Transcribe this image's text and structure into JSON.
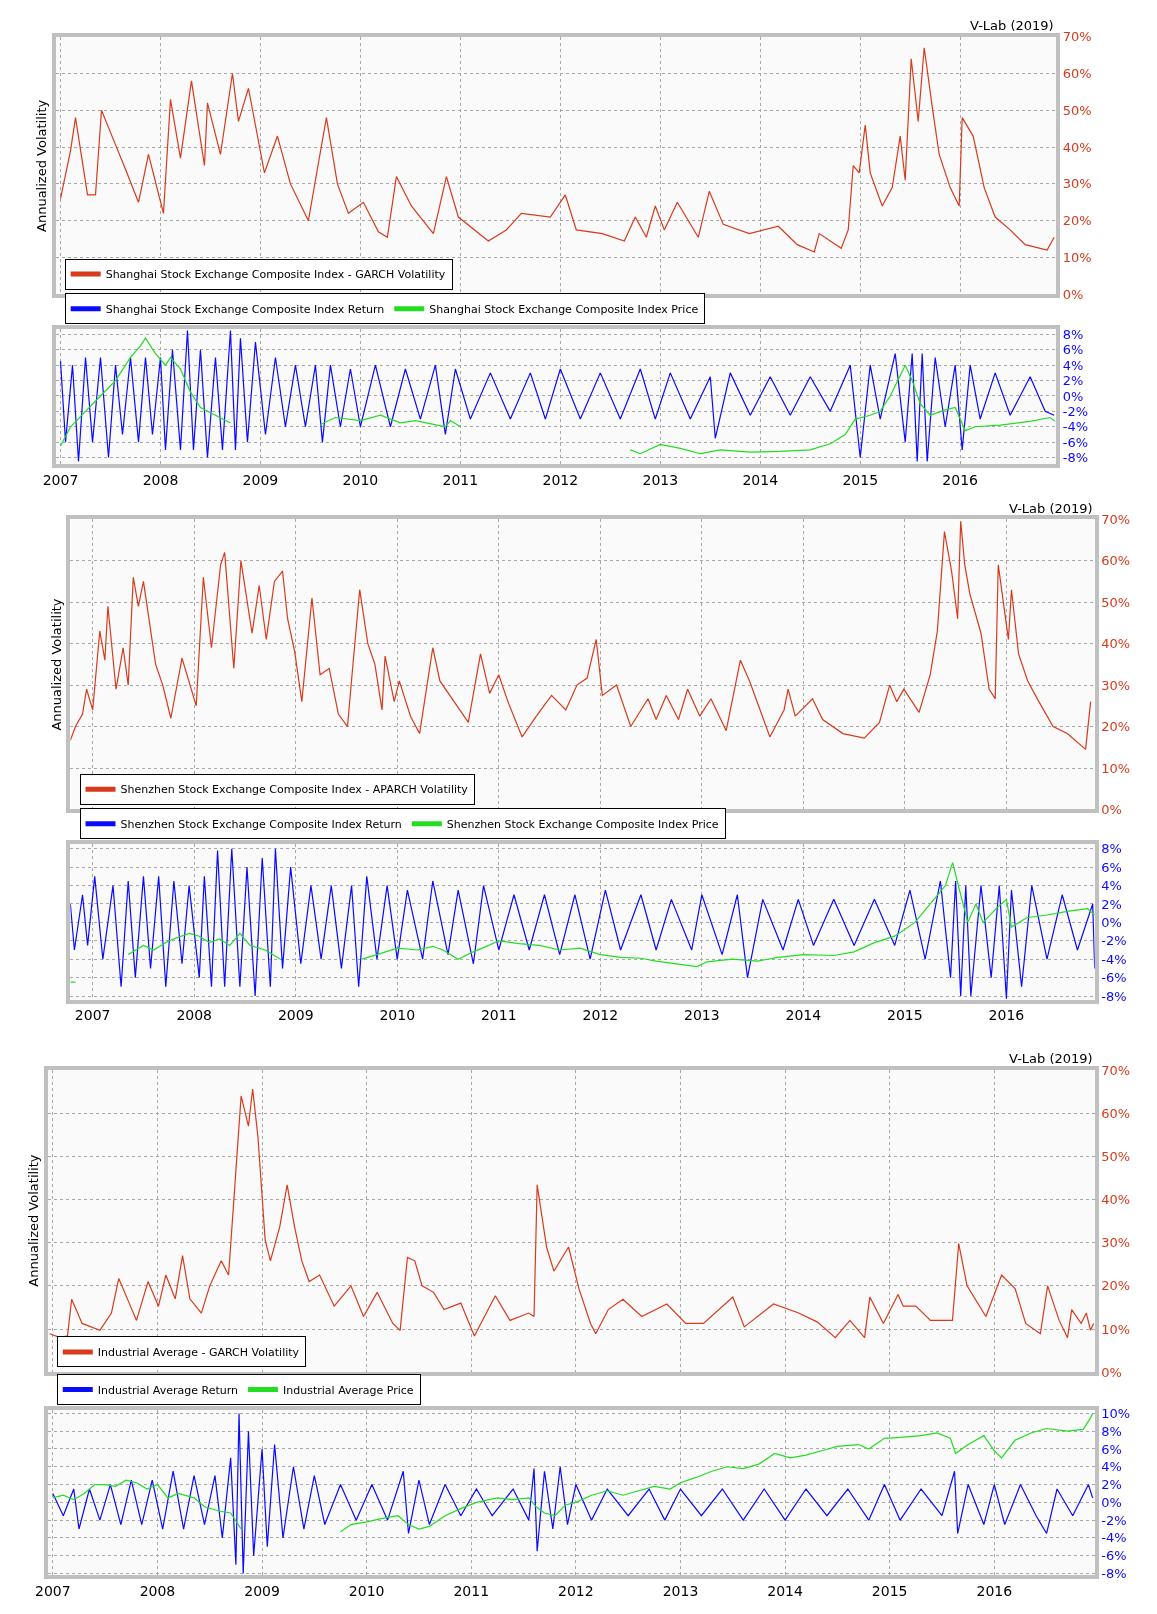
{
  "chart_data": [
    {
      "type": "line",
      "ylabel": "Annualized Volatility",
      "annotations": [
        "V-Lab (2019)"
      ],
      "xlim": [
        2006.95,
        2016.96
      ],
      "xticks": [
        2007,
        2008,
        2009,
        2010,
        2011,
        2012,
        2013,
        2014,
        2015,
        2016
      ],
      "ylim": [
        0,
        70
      ],
      "yticks": [
        {
          "value": 0,
          "label": "0%"
        },
        {
          "value": 10,
          "label": "10%"
        },
        {
          "value": 20,
          "label": "20%"
        },
        {
          "value": 30,
          "label": "30%"
        },
        {
          "value": 40,
          "label": "40%"
        },
        {
          "value": 50,
          "label": "50%"
        },
        {
          "value": 60,
          "label": "60%"
        },
        {
          "value": 70,
          "label": "70%"
        }
      ],
      "grid": true,
      "legend": "bottom left",
      "tick_labels": "y",
      "series": [
        {
          "name": "Shanghai Stock Exchange Composite Index - GARCH Volatility",
          "color": "#d83a1c",
          "x": [
            2007.0,
            2007.1,
            2007.15,
            2007.27,
            2007.35,
            2007.41,
            2007.5,
            2007.65,
            2007.78,
            2007.88,
            2008.03,
            2008.1,
            2008.2,
            2008.31,
            2008.44,
            2008.47,
            2008.6,
            2008.72,
            2008.78,
            2008.88,
            2009.04,
            2009.17,
            2009.3,
            2009.48,
            2009.55,
            2009.66,
            2009.77,
            2009.88,
            2010.03,
            2010.18,
            2010.27,
            2010.36,
            2010.51,
            2010.73,
            2010.86,
            2010.98,
            2011.28,
            2011.46,
            2011.61,
            2011.9,
            2012.05,
            2012.16,
            2012.42,
            2012.64,
            2012.75,
            2012.86,
            2012.95,
            2013.04,
            2013.17,
            2013.38,
            2013.49,
            2013.63,
            2013.89,
            2014.18,
            2014.37,
            2014.54,
            2014.59,
            2014.81,
            2014.88,
            2014.93,
            2014.99,
            2015.05,
            2015.1,
            2015.22,
            2015.32,
            2015.4,
            2015.45,
            2015.51,
            2015.58,
            2015.64,
            2015.72,
            2015.79,
            2015.9,
            2015.99,
            2016.02,
            2016.13,
            2016.24,
            2016.35,
            2016.5,
            2016.65,
            2016.87,
            2016.94
          ],
          "values": [
            26,
            39,
            48,
            27,
            27,
            50,
            44,
            34,
            25,
            38,
            22,
            53,
            37,
            58,
            35,
            52,
            38,
            60,
            47,
            56,
            33,
            43,
            30,
            20,
            31,
            48,
            30,
            22,
            25,
            17,
            15.5,
            32,
            24,
            16.5,
            32,
            21,
            14.5,
            17.5,
            22,
            21,
            27,
            17.5,
            16.5,
            14.5,
            21,
            15.5,
            24,
            17.5,
            25,
            15.5,
            28,
            19,
            16.5,
            18.5,
            13.5,
            11.5,
            16.5,
            12.5,
            17.5,
            35,
            33,
            46,
            33,
            24,
            29,
            43,
            31,
            64,
            47,
            67,
            51,
            38,
            29,
            24,
            48,
            43,
            29,
            21,
            17.5,
            13.5,
            12,
            15.5
          ]
        }
      ]
    },
    {
      "type": "line",
      "xlim": [
        2006.95,
        2016.96
      ],
      "xticks": [
        2007,
        2008,
        2009,
        2010,
        2011,
        2012,
        2013,
        2014,
        2015,
        2016
      ],
      "ylim": [
        -8.8,
        8.7
      ],
      "yticks": [
        {
          "value": -8,
          "label": "-8%"
        },
        {
          "value": -6,
          "label": "-6%"
        },
        {
          "value": -4,
          "label": "-4%"
        },
        {
          "value": -2,
          "label": "-2%"
        },
        {
          "value": 0,
          "label": "0%"
        },
        {
          "value": 2,
          "label": "2%"
        },
        {
          "value": 4,
          "label": "4%"
        },
        {
          "value": 6,
          "label": "6%"
        },
        {
          "value": 8,
          "label": "8%"
        }
      ],
      "grid": true,
      "legend": "top left",
      "series": [
        {
          "name": "Shanghai Stock Exchange Composite Index Return",
          "color": "#0a0aff",
          "x": [
            2007.0,
            2007.05,
            2007.12,
            2007.18,
            2007.25,
            2007.32,
            2007.4,
            2007.48,
            2007.55,
            2007.62,
            2007.7,
            2007.78,
            2007.85,
            2007.92,
            2008.0,
            2008.05,
            2008.12,
            2008.2,
            2008.27,
            2008.33,
            2008.4,
            2008.47,
            2008.55,
            2008.62,
            2008.7,
            2008.75,
            2008.8,
            2008.87,
            2008.95,
            2009.05,
            2009.15,
            2009.25,
            2009.35,
            2009.45,
            2009.55,
            2009.62,
            2009.7,
            2009.8,
            2009.9,
            2010.0,
            2010.15,
            2010.3,
            2010.45,
            2010.6,
            2010.75,
            2010.85,
            2010.95,
            2011.1,
            2011.3,
            2011.5,
            2011.7,
            2011.85,
            2012.0,
            2012.2,
            2012.4,
            2012.6,
            2012.8,
            2012.95,
            2013.1,
            2013.3,
            2013.5,
            2013.55,
            2013.7,
            2013.9,
            2014.1,
            2014.3,
            2014.5,
            2014.7,
            2014.9,
            2015.0,
            2015.1,
            2015.2,
            2015.35,
            2015.45,
            2015.52,
            2015.57,
            2015.62,
            2015.67,
            2015.75,
            2015.85,
            2015.95,
            2016.02,
            2016.1,
            2016.2,
            2016.35,
            2016.5,
            2016.7,
            2016.85,
            2016.94
          ],
          "values": [
            4.5,
            -6,
            4,
            -8.5,
            5,
            -6,
            5,
            -8,
            4,
            -5,
            5,
            -6,
            5,
            -5,
            5,
            -7,
            6,
            -7,
            8.5,
            -7,
            6,
            -8,
            5,
            -7,
            8.5,
            -7,
            7.5,
            -6,
            7,
            -5,
            5,
            -4,
            4,
            -4,
            4,
            -6,
            4,
            -4,
            3.5,
            -4,
            4,
            -4,
            3.5,
            -3,
            4,
            -5,
            3.5,
            -3,
            3,
            -3,
            3,
            -3,
            3.5,
            -3,
            3,
            -3,
            3.5,
            -3,
            3,
            -3,
            2.5,
            -5.5,
            3,
            -2.5,
            2.5,
            -2.5,
            2.5,
            -2,
            4,
            -8,
            4,
            -3,
            5.5,
            -6,
            5.5,
            -8.5,
            5.5,
            -8.5,
            5,
            -4,
            4,
            -7,
            4,
            -3,
            3,
            -2.5,
            2.5,
            -2,
            -2.5
          ]
        },
        {
          "name": "Shanghai Stock Exchange Composite Index Price",
          "color": "#22dd22",
          "x": [
            2007.0,
            2007.1,
            2007.25,
            2007.4,
            2007.55,
            2007.7,
            2007.8,
            2007.85,
            2007.95,
            2008.05,
            2008.1,
            2008.2,
            2008.3,
            2008.4,
            2008.55,
            2008.7,
            2008.8,
            2009.6,
            2009.75,
            2010.0,
            2010.2,
            2010.4,
            2010.55,
            2010.85,
            2010.9,
            2011.0,
            2011.1,
            2012.7,
            2012.8,
            2013.0,
            2013.2,
            2013.4,
            2013.6,
            2013.9,
            2014.2,
            2014.5,
            2014.7,
            2014.85,
            2014.95,
            2015.1,
            2015.2,
            2015.3,
            2015.45,
            2015.52,
            2015.6,
            2015.7,
            2015.85,
            2015.95,
            2016.05,
            2016.15,
            2016.4,
            2016.7,
            2016.9,
            2016.95
          ],
          "values": [
            -6.5,
            -4,
            -2,
            0,
            2,
            5,
            6.5,
            7.5,
            5.5,
            4,
            5,
            3.5,
            0.5,
            -1.5,
            -2.5,
            -3.5,
            null,
            -3.7,
            -2.8,
            -3.2,
            -2.5,
            -3.5,
            -3.2,
            -4,
            -3.2,
            -4,
            null,
            -7,
            -7.5,
            -6.3,
            -6.8,
            -7.5,
            -7,
            -7.3,
            -7.2,
            -7,
            -6.2,
            -5,
            -3,
            -2.5,
            -2,
            0,
            4,
            2,
            -1,
            -2.5,
            -1.8,
            -1.5,
            -4.5,
            -4,
            -3.8,
            -3.3,
            -2.8,
            -3.3
          ]
        }
      ]
    },
    {
      "type": "line",
      "ylabel": "Annualized Volatility",
      "annotations": [
        "V-Lab (2019)"
      ],
      "xlim": [
        2006.78,
        2016.87
      ],
      "xticks": [
        2007,
        2008,
        2009,
        2010,
        2011,
        2012,
        2013,
        2014,
        2015,
        2016
      ],
      "ylim": [
        0,
        70
      ],
      "yticks": [
        {
          "value": 0,
          "label": "0%"
        },
        {
          "value": 10,
          "label": "10%"
        },
        {
          "value": 20,
          "label": "20%"
        },
        {
          "value": 30,
          "label": "30%"
        },
        {
          "value": 40,
          "label": "40%"
        },
        {
          "value": 50,
          "label": "50%"
        },
        {
          "value": 60,
          "label": "60%"
        },
        {
          "value": 70,
          "label": "70%"
        }
      ],
      "grid": true,
      "legend": "bottom left",
      "tick_labels": "y",
      "series": [
        {
          "name": "Shenzhen Stock Exchange Composite Index - APARCH Volatility",
          "color": "#d83a1c",
          "x": [
            2006.78,
            2006.83,
            2006.9,
            2006.94,
            2007.0,
            2007.07,
            2007.12,
            2007.15,
            2007.23,
            2007.3,
            2007.35,
            2007.4,
            2007.45,
            2007.5,
            2007.62,
            2007.69,
            2007.77,
            2007.88,
            2008.02,
            2008.09,
            2008.17,
            2008.26,
            2008.3,
            2008.39,
            2008.46,
            2008.57,
            2008.64,
            2008.71,
            2008.79,
            2008.87,
            2008.92,
            2008.99,
            2009.06,
            2009.16,
            2009.24,
            2009.33,
            2009.42,
            2009.51,
            2009.56,
            2009.63,
            2009.71,
            2009.78,
            2009.85,
            2009.88,
            2009.97,
            2010.02,
            2010.13,
            2010.22,
            2010.35,
            2010.42,
            2010.56,
            2010.7,
            2010.82,
            2010.91,
            2011.0,
            2011.09,
            2011.23,
            2011.37,
            2011.52,
            2011.66,
            2011.77,
            2011.87,
            2011.96,
            2012.02,
            2012.16,
            2012.3,
            2012.47,
            2012.55,
            2012.65,
            2012.77,
            2012.86,
            2012.98,
            2013.09,
            2013.24,
            2013.38,
            2013.47,
            2013.67,
            2013.81,
            2013.85,
            2013.92,
            2014.09,
            2014.19,
            2014.39,
            2014.6,
            2014.75,
            2014.85,
            2014.92,
            2014.99,
            2015.14,
            2015.25,
            2015.32,
            2015.39,
            2015.46,
            2015.52,
            2015.55,
            2015.59,
            2015.64,
            2015.75,
            2015.83,
            2015.89,
            2015.92,
            2016.02,
            2016.05,
            2016.12,
            2016.21,
            2016.32,
            2016.46,
            2016.6,
            2016.78,
            2016.83
          ],
          "values": [
            16.7,
            20,
            23,
            29,
            24,
            43,
            36,
            49,
            29,
            39,
            30,
            56,
            49,
            55,
            35,
            30,
            22,
            36.5,
            25,
            56,
            39,
            59,
            62,
            34,
            60,
            42.5,
            54,
            41,
            55,
            57.5,
            46,
            38,
            26,
            51,
            32.5,
            34,
            23,
            20,
            34,
            53,
            40,
            35,
            24,
            37,
            26,
            31,
            22.5,
            18.3,
            39,
            31,
            26,
            21,
            37.5,
            28,
            32.5,
            26,
            17.5,
            22.5,
            27.5,
            24,
            30,
            31.7,
            41,
            27.5,
            30,
            20,
            26.7,
            21.7,
            27.5,
            21.7,
            29,
            22.5,
            26.7,
            19,
            36,
            31,
            17.5,
            24,
            29,
            22.5,
            26.7,
            21.7,
            18.3,
            17.2,
            21,
            30,
            26,
            29,
            23.4,
            32.5,
            43,
            67,
            57.5,
            46,
            69.5,
            59,
            52,
            42.5,
            29,
            26.7,
            59,
            41,
            53,
            37.5,
            31,
            26,
            20,
            18.3,
            14.5,
            26
          ]
        }
      ]
    },
    {
      "type": "line",
      "xlim": [
        2006.78,
        2016.87
      ],
      "xticks": [
        2007,
        2008,
        2009,
        2010,
        2011,
        2012,
        2013,
        2014,
        2015,
        2016
      ],
      "ylim": [
        -8.4,
        8.5
      ],
      "yticks": [
        {
          "value": -8,
          "label": "-8%"
        },
        {
          "value": -6,
          "label": "-6%"
        },
        {
          "value": -4,
          "label": "-4%"
        },
        {
          "value": -2,
          "label": "-2%"
        },
        {
          "value": 0,
          "label": "0%"
        },
        {
          "value": 2,
          "label": "2%"
        },
        {
          "value": 4,
          "label": "4%"
        },
        {
          "value": 6,
          "label": "6%"
        },
        {
          "value": 8,
          "label": "8%"
        }
      ],
      "grid": true,
      "legend": "top left",
      "series": [
        {
          "name": "Shenzhen Stock Exchange Composite Index Return",
          "color": "#0a0aff",
          "x": [
            2006.78,
            2006.82,
            2006.9,
            2006.95,
            2007.02,
            2007.1,
            2007.2,
            2007.28,
            2007.35,
            2007.42,
            2007.5,
            2007.57,
            2007.65,
            2007.72,
            2007.8,
            2007.88,
            2007.95,
            2008.05,
            2008.1,
            2008.17,
            2008.23,
            2008.3,
            2008.37,
            2008.45,
            2008.52,
            2008.6,
            2008.67,
            2008.75,
            2008.8,
            2008.87,
            2008.95,
            2009.05,
            2009.15,
            2009.25,
            2009.35,
            2009.45,
            2009.55,
            2009.62,
            2009.7,
            2009.8,
            2009.9,
            2010.0,
            2010.1,
            2010.25,
            2010.35,
            2010.5,
            2010.6,
            2010.75,
            2010.85,
            2011.0,
            2011.15,
            2011.3,
            2011.45,
            2011.6,
            2011.75,
            2011.9,
            2012.05,
            2012.2,
            2012.4,
            2012.55,
            2012.7,
            2012.9,
            2013.0,
            2013.2,
            2013.35,
            2013.45,
            2013.6,
            2013.8,
            2013.95,
            2014.1,
            2014.3,
            2014.5,
            2014.7,
            2014.9,
            2015.05,
            2015.2,
            2015.35,
            2015.45,
            2015.5,
            2015.55,
            2015.6,
            2015.65,
            2015.75,
            2015.85,
            2015.93,
            2016.0,
            2016.05,
            2016.15,
            2016.25,
            2016.4,
            2016.55,
            2016.7,
            2016.85,
            2016.87
          ],
          "values": [
            2,
            -3,
            3,
            -2.5,
            5,
            -4,
            4,
            -7,
            4.5,
            -6,
            5,
            -5,
            5,
            -7,
            4.5,
            -4.5,
            4,
            -6,
            5,
            -7,
            7.8,
            -7,
            8,
            -7,
            6,
            -8,
            7,
            -7,
            8,
            -5,
            6,
            -4.5,
            4,
            -4,
            4,
            -5,
            4,
            -7,
            5,
            -4,
            4,
            -4,
            3.5,
            -4,
            4.5,
            -3.5,
            3.5,
            -4.5,
            4,
            -3,
            3,
            -3,
            3,
            -3.5,
            3,
            -4,
            3.5,
            -3,
            3,
            -3,
            2.5,
            -3,
            3,
            -3.5,
            3,
            -6,
            2.5,
            -3,
            2.5,
            -2.5,
            2.5,
            -2.5,
            2.5,
            -2.5,
            3.5,
            -4,
            4.5,
            -6,
            4.5,
            -8,
            4,
            -8,
            4,
            -6,
            4,
            -8.3,
            3.5,
            -7,
            4,
            -4,
            3,
            -3,
            2,
            -5
          ]
        },
        {
          "name": "Shenzhen Stock Exchange Composite Index Price",
          "color": "#22dd22",
          "x": [
            2006.78,
            2006.83,
            2006.85,
            2007.35,
            2007.5,
            2007.6,
            2007.75,
            2007.95,
            2008.05,
            2008.15,
            2008.25,
            2008.35,
            2008.45,
            2008.55,
            2008.7,
            2008.85,
            2008.9,
            2009.65,
            2009.8,
            2010.0,
            2010.2,
            2010.35,
            2010.45,
            2010.6,
            2010.75,
            2010.9,
            2011.0,
            2011.2,
            2011.4,
            2011.6,
            2011.8,
            2012.0,
            2012.2,
            2012.4,
            2012.55,
            2012.75,
            2012.95,
            2013.05,
            2013.3,
            2013.55,
            2013.75,
            2014.0,
            2014.3,
            2014.5,
            2014.7,
            2014.9,
            2015.1,
            2015.25,
            2015.4,
            2015.47,
            2015.55,
            2015.62,
            2015.7,
            2015.77,
            2015.9,
            2016.0,
            2016.05,
            2016.2,
            2016.4,
            2016.6,
            2016.8,
            2016.87
          ],
          "values": [
            -6.5,
            -6.5,
            null,
            -3.5,
            -2.5,
            -3,
            -2,
            -1.2,
            -1.5,
            -2.2,
            -1.8,
            -2.5,
            -1.2,
            -2.5,
            -3,
            -4,
            null,
            -4,
            -3.5,
            -2.8,
            -3,
            -2.6,
            -3,
            -4,
            -3.2,
            -2.5,
            -2,
            -2.3,
            -2.5,
            -3,
            -2.8,
            -3.5,
            -3.8,
            -3.9,
            -4.2,
            -4.5,
            -4.8,
            -4.3,
            -4,
            -4.2,
            -3.8,
            -3.5,
            -3.6,
            -3.2,
            -2.2,
            -1.5,
            0,
            2,
            4,
            6.5,
            3,
            0,
            2,
            0,
            1.5,
            2.5,
            -0.5,
            0.5,
            0.8,
            1.2,
            1.5,
            0.8
          ]
        }
      ]
    },
    {
      "type": "line",
      "ylabel": "Annualized Volatility",
      "annotations": [
        "V-Lab (2019)"
      ],
      "xlim": [
        2006.95,
        2016.96
      ],
      "xticks": [
        2007,
        2008,
        2009,
        2010,
        2011,
        2012,
        2013,
        2014,
        2015,
        2016
      ],
      "ylim": [
        0,
        70
      ],
      "yticks": [
        {
          "value": 0,
          "label": "0%"
        },
        {
          "value": 10,
          "label": "10%"
        },
        {
          "value": 20,
          "label": "20%"
        },
        {
          "value": 30,
          "label": "30%"
        },
        {
          "value": 40,
          "label": "40%"
        },
        {
          "value": 50,
          "label": "50%"
        },
        {
          "value": 60,
          "label": "60%"
        },
        {
          "value": 70,
          "label": "70%"
        }
      ],
      "grid": true,
      "legend": "bottom left",
      "tick_labels": "y",
      "series": [
        {
          "name": "Industrial Average - GARCH Volatility",
          "color": "#d83a1c",
          "x": [
            2006.97,
            2007.07,
            2007.14,
            2007.18,
            2007.28,
            2007.45,
            2007.56,
            2007.63,
            2007.73,
            2007.8,
            2007.91,
            2008.01,
            2008.08,
            2008.17,
            2008.24,
            2008.31,
            2008.42,
            2008.5,
            2008.61,
            2008.68,
            2008.75,
            2008.8,
            2008.87,
            2008.91,
            2008.96,
            2009.03,
            2009.08,
            2009.17,
            2009.24,
            2009.31,
            2009.38,
            2009.45,
            2009.55,
            2009.69,
            2009.85,
            2009.97,
            2010.1,
            2010.25,
            2010.32,
            2010.39,
            2010.46,
            2010.53,
            2010.64,
            2010.74,
            2010.9,
            2011.03,
            2011.23,
            2011.37,
            2011.55,
            2011.6,
            2011.63,
            2011.72,
            2011.79,
            2011.93,
            2012.03,
            2012.14,
            2012.19,
            2012.31,
            2012.45,
            2012.63,
            2012.87,
            2013.05,
            2013.22,
            2013.5,
            2013.61,
            2013.89,
            2014.13,
            2014.31,
            2014.48,
            2014.62,
            2014.76,
            2014.81,
            2014.94,
            2015.08,
            2015.13,
            2015.25,
            2015.39,
            2015.6,
            2015.66,
            2015.74,
            2015.92,
            2016.07,
            2016.2,
            2016.3,
            2016.44,
            2016.51,
            2016.62,
            2016.7,
            2016.74,
            2016.83,
            2016.88,
            2016.92,
            2016.95
          ],
          "values": [
            8.9,
            8,
            8.4,
            16.9,
            11.3,
            9.7,
            13.7,
            21.7,
            16,
            12,
            21,
            15.3,
            22.5,
            17,
            27,
            17,
            13.7,
            20,
            25.8,
            22.5,
            46.7,
            64,
            57,
            65.6,
            54.7,
            30.6,
            25.8,
            33.8,
            43.4,
            33.8,
            25.8,
            21,
            22.5,
            15.3,
            20,
            12.9,
            18.5,
            11.3,
            9.7,
            26.6,
            25.8,
            20,
            18.5,
            14.5,
            16,
            8.4,
            17.7,
            12,
            13.7,
            12.9,
            43.4,
            29,
            23.4,
            29,
            19.3,
            11.3,
            8.9,
            14.5,
            16.9,
            12.9,
            15.8,
            11.3,
            11.3,
            17.4,
            10.5,
            15.8,
            13.7,
            11.6,
            8,
            12,
            8,
            17.4,
            11.3,
            18,
            15.3,
            15.3,
            12,
            12,
            29.8,
            20,
            12.9,
            22.5,
            19.3,
            11.3,
            8.9,
            20,
            12,
            8,
            14.5,
            11.3,
            13.7,
            9.7,
            11.3
          ]
        }
      ]
    },
    {
      "type": "line",
      "xlim": [
        2006.95,
        2016.96
      ],
      "xticks": [
        2007,
        2008,
        2009,
        2010,
        2011,
        2012,
        2013,
        2014,
        2015,
        2016
      ],
      "ylim": [
        -8.2,
        10.4
      ],
      "yticks": [
        {
          "value": -8,
          "label": "-8%"
        },
        {
          "value": -6,
          "label": "-6%"
        },
        {
          "value": -4,
          "label": "-4%"
        },
        {
          "value": -2,
          "label": "-2%"
        },
        {
          "value": 0,
          "label": "0%"
        },
        {
          "value": 2,
          "label": "2%"
        },
        {
          "value": 4,
          "label": "4%"
        },
        {
          "value": 6,
          "label": "6%"
        },
        {
          "value": 8,
          "label": "8%"
        },
        {
          "value": 10,
          "label": "10%"
        }
      ],
      "grid": true,
      "legend": "top left",
      "series": [
        {
          "name": "Industrial Average Return",
          "color": "#0a0aff",
          "x": [
            2007.0,
            2007.1,
            2007.2,
            2007.25,
            2007.35,
            2007.45,
            2007.55,
            2007.65,
            2007.75,
            2007.85,
            2007.95,
            2008.05,
            2008.15,
            2008.25,
            2008.35,
            2008.45,
            2008.55,
            2008.62,
            2008.7,
            2008.75,
            2008.78,
            2008.82,
            2008.87,
            2008.92,
            2009.0,
            2009.05,
            2009.12,
            2009.2,
            2009.3,
            2009.4,
            2009.5,
            2009.6,
            2009.75,
            2009.9,
            2010.05,
            2010.2,
            2010.35,
            2010.4,
            2010.5,
            2010.6,
            2010.75,
            2010.9,
            2011.05,
            2011.2,
            2011.4,
            2011.55,
            2011.6,
            2011.63,
            2011.7,
            2011.78,
            2011.85,
            2011.92,
            2012.0,
            2012.15,
            2012.3,
            2012.5,
            2012.7,
            2012.85,
            2013.0,
            2013.2,
            2013.4,
            2013.6,
            2013.8,
            2014.0,
            2014.2,
            2014.4,
            2014.6,
            2014.8,
            2014.95,
            2015.1,
            2015.3,
            2015.5,
            2015.62,
            2015.65,
            2015.75,
            2015.9,
            2016.0,
            2016.1,
            2016.25,
            2016.4,
            2016.5,
            2016.6,
            2016.75,
            2016.9,
            2016.94
          ],
          "values": [
            1,
            -1.5,
            1.5,
            -3,
            1.5,
            -2,
            2,
            -2.5,
            2.5,
            -2.5,
            2.5,
            -3,
            3.5,
            -3,
            3,
            -2.5,
            3,
            -4,
            5,
            -7,
            10,
            -8,
            8,
            -6,
            6,
            -5,
            6.5,
            -4,
            4,
            -3,
            3,
            -2.5,
            2,
            -2,
            2,
            -2,
            3.5,
            -3.5,
            2.5,
            -2.5,
            2,
            -1.5,
            1.5,
            -1.5,
            1.5,
            -2,
            3.8,
            -5.5,
            3.5,
            -3,
            4,
            -2.5,
            2,
            -2,
            1.5,
            -1.5,
            1.5,
            -2,
            1.5,
            -1.5,
            1.5,
            -2,
            1.5,
            -2,
            1.5,
            -1.5,
            1.5,
            -2,
            2,
            -2,
            1.5,
            -1.5,
            3.5,
            -3.5,
            2,
            -2.5,
            2,
            -2.5,
            2,
            -1.5,
            -3.5,
            1.5,
            -1.5,
            2,
            0.5
          ]
        },
        {
          "name": "Industrial Average Price",
          "color": "#22dd22",
          "x": [
            2007.0,
            2007.1,
            2007.2,
            2007.3,
            2007.4,
            2007.5,
            2007.6,
            2007.7,
            2007.8,
            2007.9,
            2008.0,
            2008.1,
            2008.2,
            2008.35,
            2008.45,
            2008.6,
            2008.7,
            2008.8,
            2008.85,
            2009.75,
            2009.85,
            2010.0,
            2010.15,
            2010.3,
            2010.4,
            2010.5,
            2010.6,
            2010.75,
            2010.9,
            2011.05,
            2011.25,
            2011.4,
            2011.55,
            2011.62,
            2011.7,
            2011.8,
            2011.9,
            2012.0,
            2012.15,
            2012.3,
            2012.45,
            2012.6,
            2012.75,
            2012.9,
            2013.0,
            2013.15,
            2013.3,
            2013.45,
            2013.6,
            2013.75,
            2013.9,
            2014.05,
            2014.2,
            2014.35,
            2014.5,
            2014.7,
            2014.8,
            2014.95,
            2015.1,
            2015.3,
            2015.45,
            2015.58,
            2015.63,
            2015.75,
            2015.9,
            2016.0,
            2016.07,
            2016.2,
            2016.35,
            2016.5,
            2016.7,
            2016.85,
            2016.92,
            2016.94
          ],
          "values": [
            0.5,
            0.8,
            0.3,
            1,
            2,
            2,
            1.8,
            2.5,
            2.2,
            1.5,
            2,
            0.5,
            1,
            0.5,
            -0.5,
            -1,
            -1.2,
            -3,
            null,
            -3.3,
            -2.5,
            -2.2,
            -1.8,
            -1.5,
            -2.5,
            -3,
            -2.7,
            -1.5,
            -0.7,
            0,
            0.5,
            0.3,
            0.5,
            -0.5,
            -1.2,
            -1.5,
            -0.3,
            0,
            0.8,
            1.3,
            0.8,
            1.3,
            1.8,
            1.5,
            2.2,
            2.8,
            3.5,
            4,
            3.8,
            4.3,
            5.5,
            5,
            5.3,
            5.8,
            6.3,
            6.5,
            6,
            7.2,
            7.3,
            7.5,
            7.8,
            7.2,
            5.5,
            6.5,
            7.5,
            5.8,
            5,
            7,
            7.8,
            8.3,
            8,
            8.2,
            9.5,
            10
          ]
        }
      ]
    }
  ]
}
